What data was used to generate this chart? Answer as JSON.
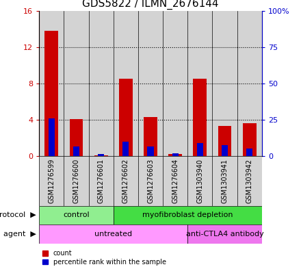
{
  "title": "GDS5822 / ILMN_2676144",
  "samples": [
    "GSM1276599",
    "GSM1276600",
    "GSM1276601",
    "GSM1276602",
    "GSM1276603",
    "GSM1276604",
    "GSM1303940",
    "GSM1303941",
    "GSM1303942"
  ],
  "counts": [
    13.8,
    4.1,
    0.05,
    8.5,
    4.3,
    0.2,
    8.5,
    3.3,
    3.6
  ],
  "percentile_ranks": [
    26.0,
    6.5,
    1.5,
    10.0,
    6.5,
    2.0,
    9.0,
    7.5,
    5.0
  ],
  "count_color": "#cc0000",
  "percentile_color": "#0000cc",
  "ylim_left": [
    0,
    16
  ],
  "ylim_right": [
    0,
    100
  ],
  "yticks_left": [
    0,
    4,
    8,
    12,
    16
  ],
  "yticks_right": [
    0,
    25,
    50,
    75,
    100
  ],
  "ytick_labels_right": [
    "0",
    "25",
    "50",
    "75",
    "100%"
  ],
  "protocol_groups": [
    {
      "label": "control",
      "start": 0,
      "end": 3,
      "color": "#90ee90"
    },
    {
      "label": "myofibroblast depletion",
      "start": 3,
      "end": 9,
      "color": "#44dd44"
    }
  ],
  "agent_groups": [
    {
      "label": "untreated",
      "start": 0,
      "end": 6,
      "color": "#ff99ff"
    },
    {
      "label": "anti-CTLA4 antibody",
      "start": 6,
      "end": 9,
      "color": "#ee77ee"
    }
  ],
  "bar_width": 0.55,
  "blue_bar_width": 0.25,
  "bar_bg_color": "#d3d3d3",
  "background_color": "#ffffff",
  "legend_count_label": "count",
  "legend_percentile_label": "percentile rank within the sample",
  "title_fontsize": 11,
  "tick_fontsize": 8,
  "label_fontsize": 7,
  "legend_fontsize": 7,
  "row_label_fontsize": 8
}
